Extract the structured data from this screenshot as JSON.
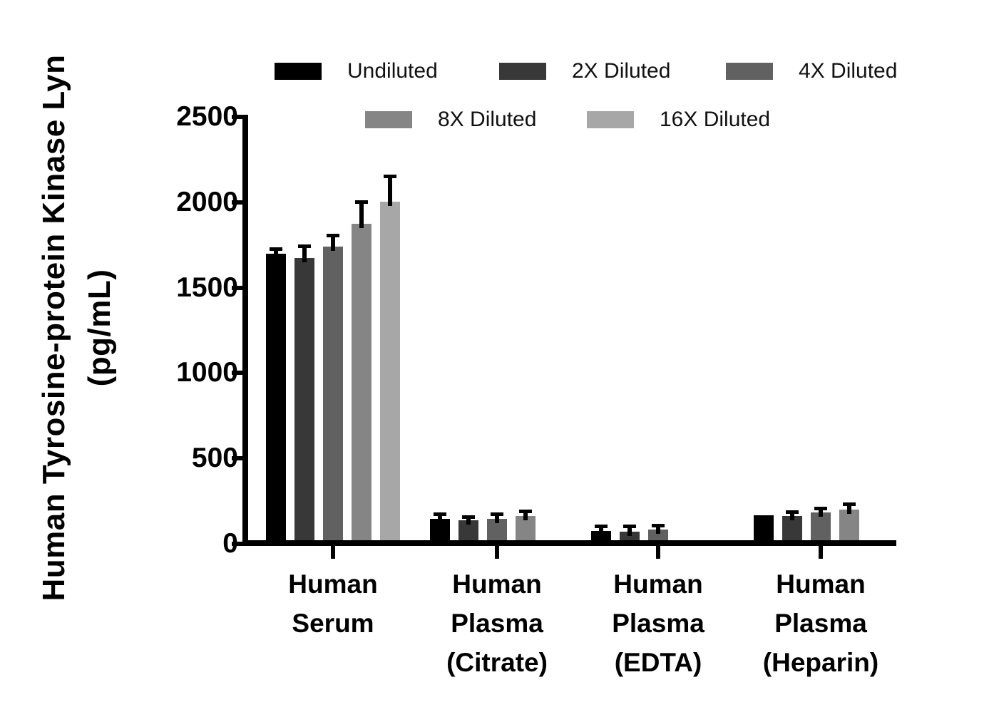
{
  "chart_data": {
    "type": "bar",
    "title": "",
    "ylabel_line1": "Human Tyrosine-protein Kinase Lyn",
    "ylabel_line2": "(pg/mL)",
    "ylim": [
      0,
      2500
    ],
    "yticks": [
      0,
      500,
      1000,
      1500,
      2000,
      2500
    ],
    "grid": false,
    "legend_position": "top-center",
    "categories": [
      {
        "label": "Human Serum",
        "lines": [
          "Human",
          "Serum"
        ]
      },
      {
        "label": "Human Plasma (Citrate)",
        "lines": [
          "Human",
          "Plasma",
          "(Citrate)"
        ]
      },
      {
        "label": "Human Plasma (EDTA)",
        "lines": [
          "Human",
          "Plasma",
          "(EDTA)"
        ]
      },
      {
        "label": "Human Plasma (Heparin)",
        "lines": [
          "Human",
          "Plasma",
          "(Heparin)"
        ]
      }
    ],
    "series": [
      {
        "name": "Undiluted",
        "color": "#000000",
        "values": [
          1700,
          148,
          76,
          168
        ],
        "sd": [
          15,
          14,
          14,
          0
        ]
      },
      {
        "name": "2X Diluted",
        "color": "#383838",
        "values": [
          1672,
          136,
          73,
          163
        ],
        "sd": [
          60,
          10,
          19,
          14
        ]
      },
      {
        "name": "4X Diluted",
        "color": "#616161",
        "values": [
          1740,
          148,
          83,
          183
        ],
        "sd": [
          55,
          16,
          14,
          13
        ]
      },
      {
        "name": "8X Diluted",
        "color": "#858585",
        "values": [
          1875,
          162,
          null,
          202
        ],
        "sd": [
          115,
          18,
          null,
          20
        ]
      },
      {
        "name": "16X Diluted",
        "color": "#a7a7a7",
        "values": [
          2003,
          null,
          null,
          null
        ],
        "sd": [
          140,
          null,
          null,
          null
        ]
      }
    ],
    "error_bar_color": "#000000",
    "axis_color": "#000000"
  }
}
